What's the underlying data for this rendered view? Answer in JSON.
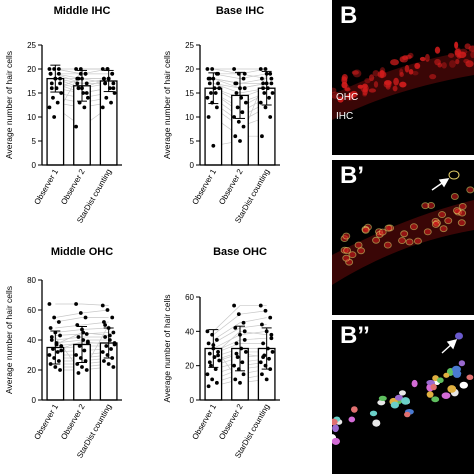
{
  "chart_data": [
    {
      "type": "bar",
      "title": "Middle IHC",
      "ylabel": "Average number of hair cells",
      "categories": [
        "Observer 1",
        "Observer 2",
        "StarDist counting"
      ],
      "values": [
        18,
        16.5,
        17.5
      ],
      "errors": [
        2.8,
        3.2,
        2.2
      ],
      "ylim": [
        0,
        25
      ],
      "yticks": [
        0,
        5,
        10,
        15,
        20,
        25
      ],
      "points": [
        [
          20,
          20,
          19,
          19,
          18,
          18,
          17,
          16,
          15,
          14,
          13,
          12,
          10,
          20,
          19,
          18,
          17,
          16
        ],
        [
          20,
          19,
          19,
          18,
          18,
          17,
          16,
          15,
          14,
          13,
          12,
          8,
          20,
          19,
          17,
          16,
          15,
          18
        ],
        [
          20,
          20,
          19,
          18,
          18,
          17,
          17,
          16,
          15,
          14,
          13,
          12,
          20,
          19,
          18,
          18,
          16,
          17
        ]
      ]
    },
    {
      "type": "bar",
      "title": "Base IHC",
      "ylabel": "Average number of hair cells",
      "categories": [
        "Observer 1",
        "Observer 2",
        "StarDist counting"
      ],
      "values": [
        16,
        14.5,
        16
      ],
      "errors": [
        3.2,
        4.8,
        3.5
      ],
      "ylim": [
        0,
        25
      ],
      "yticks": [
        0,
        5,
        10,
        15,
        20,
        25
      ],
      "points": [
        [
          20,
          20,
          19,
          18,
          18,
          17,
          17,
          16,
          16,
          15,
          15,
          14,
          13,
          12,
          10,
          4,
          19,
          18
        ],
        [
          20,
          19,
          18,
          17,
          16,
          16,
          15,
          14,
          13,
          12,
          11,
          10,
          9,
          8,
          6,
          5,
          19,
          17
        ],
        [
          20,
          20,
          19,
          18,
          17,
          17,
          16,
          16,
          15,
          15,
          14,
          13,
          12,
          10,
          6,
          19,
          18,
          17
        ]
      ]
    },
    {
      "type": "bar",
      "title": "Middle OHC",
      "ylabel": "Average number of hair cells",
      "categories": [
        "Observer 1",
        "Observer 2",
        "StarDist counting"
      ],
      "values": [
        35,
        37,
        38
      ],
      "errors": [
        11,
        12,
        10
      ],
      "ylim": [
        0,
        80
      ],
      "yticks": [
        0,
        20,
        40,
        60,
        80
      ],
      "points": [
        [
          64,
          55,
          52,
          48,
          45,
          43,
          40,
          38,
          36,
          34,
          32,
          30,
          28,
          26,
          24,
          22,
          20,
          42,
          37,
          33
        ],
        [
          64,
          58,
          55,
          50,
          47,
          44,
          42,
          40,
          38,
          36,
          33,
          30,
          28,
          26,
          24,
          22,
          20,
          18,
          45,
          39
        ],
        [
          63,
          60,
          55,
          52,
          48,
          45,
          42,
          40,
          38,
          36,
          34,
          32,
          30,
          28,
          26,
          24,
          22,
          50,
          43,
          37
        ]
      ]
    },
    {
      "type": "bar",
      "title": "Base OHC",
      "ylabel": "Average number of hair cells",
      "categories": [
        "Observer 1",
        "Observer 2",
        "StarDist counting"
      ],
      "values": [
        30,
        30,
        30
      ],
      "errors": [
        11,
        13,
        12
      ],
      "ylim": [
        0,
        60
      ],
      "yticks": [
        0,
        20,
        40,
        60
      ],
      "points": [
        [
          40,
          38,
          35,
          33,
          30,
          28,
          27,
          25,
          23,
          20,
          18,
          15,
          12,
          10,
          8,
          32,
          26,
          22
        ],
        [
          55,
          50,
          45,
          42,
          38,
          35,
          33,
          30,
          28,
          25,
          22,
          20,
          18,
          15,
          12,
          10,
          40,
          27
        ],
        [
          55,
          52,
          48,
          44,
          40,
          36,
          33,
          30,
          28,
          26,
          24,
          22,
          20,
          18,
          15,
          12,
          38,
          25
        ]
      ]
    }
  ],
  "panels": [
    {
      "label": "B",
      "sub": [
        "OHC",
        "IHC"
      ]
    },
    {
      "label": "B’"
    },
    {
      "label": "B’’"
    }
  ],
  "colors": {
    "bar_fill": "#ffffff",
    "stroke": "#000000",
    "lines": "#c8c8c8",
    "panel_bg": "#000000",
    "fluor": "#d11c1c",
    "outline": "#e8d26a"
  }
}
